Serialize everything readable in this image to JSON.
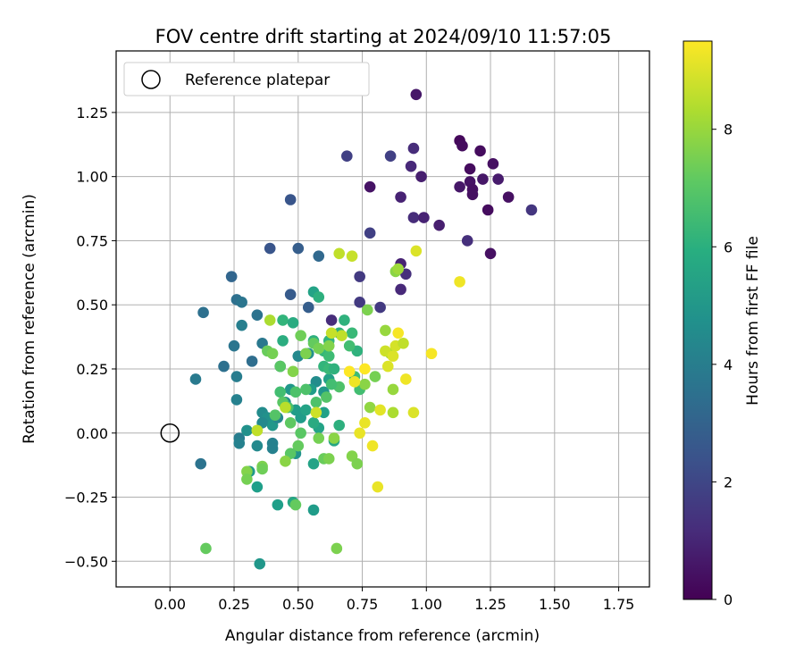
{
  "chart_data": {
    "type": "scatter",
    "title": "FOV centre drift starting at 2024/09/10 11:57:05",
    "xlabel": "Angular distance from reference (arcmin)",
    "ylabel": "Rotation from reference (arcmin)",
    "xlim": [
      -0.21,
      1.87
    ],
    "ylim": [
      -0.6,
      1.49
    ],
    "xticks": [
      0.0,
      0.25,
      0.5,
      0.75,
      1.0,
      1.25,
      1.5,
      1.75
    ],
    "xtick_labels": [
      "0.00",
      "0.25",
      "0.50",
      "0.75",
      "1.00",
      "1.25",
      "1.50",
      "1.75"
    ],
    "yticks": [
      -0.5,
      -0.25,
      0.0,
      0.25,
      0.5,
      0.75,
      1.0,
      1.25
    ],
    "ytick_labels": [
      "−0.50",
      "−0.25",
      "0.00",
      "0.25",
      "0.50",
      "0.75",
      "1.00",
      "1.25"
    ],
    "grid": true,
    "legend": {
      "position": "top-left",
      "entries": [
        "Reference platepar"
      ]
    },
    "reference_point": {
      "x": 0.0,
      "y": 0.0,
      "name": "Reference platepar",
      "marker": "hollow-circle"
    },
    "colorbar": {
      "label": "Hours from first FF file",
      "colormap": "viridis",
      "range": [
        0,
        9.5
      ],
      "ticks": [
        0,
        2,
        4,
        6,
        8
      ],
      "tick_labels": [
        "0",
        "2",
        "4",
        "6",
        "8"
      ]
    },
    "points": [
      [
        0.96,
        1.32,
        0.6
      ],
      [
        1.13,
        1.14,
        0.2
      ],
      [
        1.14,
        1.12,
        0.3
      ],
      [
        1.17,
        1.03,
        0.3
      ],
      [
        1.21,
        1.1,
        0.3
      ],
      [
        1.26,
        1.05,
        0.4
      ],
      [
        1.17,
        0.98,
        0.5
      ],
      [
        1.18,
        0.95,
        0.4
      ],
      [
        1.18,
        0.93,
        0.4
      ],
      [
        1.22,
        0.99,
        0.6
      ],
      [
        1.28,
        0.99,
        0.7
      ],
      [
        1.32,
        0.92,
        0.4
      ],
      [
        1.24,
        0.87,
        0.3
      ],
      [
        1.13,
        0.96,
        0.6
      ],
      [
        1.25,
        0.7,
        0.4
      ],
      [
        1.41,
        0.87,
        1.5
      ],
      [
        1.16,
        0.75,
        1.3
      ],
      [
        0.95,
        1.11,
        1.2
      ],
      [
        0.94,
        1.04,
        1.1
      ],
      [
        0.98,
        1.0,
        0.8
      ],
      [
        0.78,
        0.96,
        0.5
      ],
      [
        0.9,
        0.92,
        0.9
      ],
      [
        0.86,
        1.08,
        1.8
      ],
      [
        0.69,
        1.08,
        1.8
      ],
      [
        0.95,
        0.84,
        1.2
      ],
      [
        0.99,
        0.84,
        0.9
      ],
      [
        1.05,
        0.81,
        0.8
      ],
      [
        0.78,
        0.78,
        1.8
      ],
      [
        0.9,
        0.66,
        0.9
      ],
      [
        0.92,
        0.62,
        1.3
      ],
      [
        0.9,
        0.56,
        1.1
      ],
      [
        0.74,
        0.61,
        1.6
      ],
      [
        0.74,
        0.51,
        1.6
      ],
      [
        0.82,
        0.49,
        1.6
      ],
      [
        0.63,
        0.44,
        1.2
      ],
      [
        0.47,
        0.91,
        2.5
      ],
      [
        0.39,
        0.72,
        2.5
      ],
      [
        0.5,
        0.72,
        2.8
      ],
      [
        0.58,
        0.69,
        3.2
      ],
      [
        0.47,
        0.54,
        2.7
      ],
      [
        0.54,
        0.49,
        2.8
      ],
      [
        0.24,
        0.61,
        3.1
      ],
      [
        0.26,
        0.52,
        3.5
      ],
      [
        0.28,
        0.51,
        3.7
      ],
      [
        0.13,
        0.47,
        3.5
      ],
      [
        0.34,
        0.46,
        3.6
      ],
      [
        0.28,
        0.42,
        4.1
      ],
      [
        0.36,
        0.35,
        3.8
      ],
      [
        0.25,
        0.34,
        3.7
      ],
      [
        0.21,
        0.26,
        3.5
      ],
      [
        0.32,
        0.28,
        3.4
      ],
      [
        0.43,
        0.26,
        3.3
      ],
      [
        0.1,
        0.21,
        3.9
      ],
      [
        0.26,
        0.22,
        4.0
      ],
      [
        0.26,
        0.13,
        4.2
      ],
      [
        0.12,
        -0.12,
        3.6
      ],
      [
        0.27,
        -0.02,
        4.0
      ],
      [
        0.27,
        -0.04,
        4.2
      ],
      [
        0.3,
        0.01,
        4.8
      ],
      [
        0.34,
        -0.05,
        4.5
      ],
      [
        0.4,
        -0.04,
        4.2
      ],
      [
        0.4,
        -0.06,
        4.2
      ],
      [
        0.36,
        0.08,
        4.6
      ],
      [
        0.38,
        0.06,
        4.8
      ],
      [
        0.4,
        0.03,
        5.0
      ],
      [
        0.42,
        0.06,
        4.4
      ],
      [
        0.36,
        0.04,
        4.5
      ],
      [
        0.45,
        0.12,
        4.7
      ],
      [
        0.47,
        0.17,
        5.0
      ],
      [
        0.49,
        0.09,
        5.2
      ],
      [
        0.51,
        0.06,
        5.2
      ],
      [
        0.53,
        0.09,
        5.5
      ],
      [
        0.5,
        0.3,
        4.5
      ],
      [
        0.54,
        0.31,
        4.8
      ],
      [
        0.57,
        0.2,
        4.6
      ],
      [
        0.55,
        0.17,
        5.2
      ],
      [
        0.6,
        0.16,
        5.0
      ],
      [
        0.62,
        0.21,
        5.4
      ],
      [
        0.6,
        0.08,
        5.4
      ],
      [
        0.58,
        0.02,
        5.5
      ],
      [
        0.56,
        0.04,
        5.8
      ],
      [
        0.64,
        -0.03,
        5.6
      ],
      [
        0.66,
        0.03,
        6.0
      ],
      [
        0.49,
        -0.08,
        4.9
      ],
      [
        0.56,
        -0.12,
        5.5
      ],
      [
        0.56,
        -0.3,
        5.2
      ],
      [
        0.42,
        -0.28,
        5.3
      ],
      [
        0.48,
        -0.27,
        5.6
      ],
      [
        0.35,
        -0.51,
        5.0
      ],
      [
        0.31,
        -0.15,
        5.1
      ],
      [
        0.34,
        -0.21,
        5.3
      ],
      [
        0.56,
        0.55,
        5.5
      ],
      [
        0.58,
        0.53,
        6.0
      ],
      [
        0.44,
        0.44,
        6.2
      ],
      [
        0.48,
        0.43,
        5.8
      ],
      [
        0.44,
        0.36,
        5.9
      ],
      [
        0.56,
        0.36,
        6.0
      ],
      [
        0.6,
        0.32,
        6.3
      ],
      [
        0.62,
        0.36,
        6.2
      ],
      [
        0.62,
        0.3,
        6.5
      ],
      [
        0.6,
        0.26,
        6.2
      ],
      [
        0.62,
        0.25,
        6.4
      ],
      [
        0.64,
        0.25,
        6.1
      ],
      [
        0.66,
        0.39,
        6.0
      ],
      [
        0.68,
        0.44,
        6.1
      ],
      [
        0.71,
        0.39,
        6.4
      ],
      [
        0.73,
        0.32,
        6.1
      ],
      [
        0.7,
        0.34,
        6.6
      ],
      [
        0.72,
        0.22,
        6.5
      ],
      [
        0.74,
        0.17,
        6.6
      ],
      [
        0.66,
        0.18,
        6.8
      ],
      [
        0.63,
        0.19,
        6.6
      ],
      [
        0.61,
        0.14,
        6.9
      ],
      [
        0.57,
        0.12,
        6.8
      ],
      [
        0.53,
        0.17,
        6.8
      ],
      [
        0.49,
        0.16,
        6.8
      ],
      [
        0.43,
        0.16,
        6.6
      ],
      [
        0.46,
        0.1,
        6.7
      ],
      [
        0.41,
        0.07,
        6.9
      ],
      [
        0.44,
        0.12,
        7.0
      ],
      [
        0.47,
        0.04,
        7.1
      ],
      [
        0.5,
        -0.05,
        7.2
      ],
      [
        0.47,
        -0.08,
        7.0
      ],
      [
        0.51,
        0.0,
        7.0
      ],
      [
        0.38,
        0.32,
        7.3
      ],
      [
        0.4,
        0.31,
        7.5
      ],
      [
        0.43,
        0.26,
        7.0
      ],
      [
        0.48,
        0.24,
        7.7
      ],
      [
        0.51,
        0.38,
        7.4
      ],
      [
        0.53,
        0.31,
        7.6
      ],
      [
        0.56,
        0.35,
        7.2
      ],
      [
        0.58,
        0.33,
        7.5
      ],
      [
        0.62,
        0.34,
        7.7
      ],
      [
        0.34,
        0.01,
        7.8
      ],
      [
        0.3,
        -0.15,
        7.7
      ],
      [
        0.3,
        -0.18,
        7.5
      ],
      [
        0.36,
        -0.13,
        7.6
      ],
      [
        0.36,
        -0.14,
        7.4
      ],
      [
        0.45,
        -0.11,
        7.8
      ],
      [
        0.49,
        -0.28,
        7.2
      ],
      [
        0.6,
        -0.1,
        7.3
      ],
      [
        0.62,
        -0.1,
        7.6
      ],
      [
        0.64,
        -0.02,
        7.8
      ],
      [
        0.58,
        -0.02,
        7.5
      ],
      [
        0.14,
        -0.45,
        7.2
      ],
      [
        0.65,
        -0.45,
        7.6
      ],
      [
        0.71,
        -0.09,
        7.7
      ],
      [
        0.73,
        -0.12,
        7.6
      ],
      [
        0.76,
        0.19,
        7.8
      ],
      [
        0.78,
        0.1,
        7.9
      ],
      [
        0.8,
        0.22,
        7.5
      ],
      [
        0.84,
        0.4,
        8.0
      ],
      [
        0.86,
        0.31,
        8.2
      ],
      [
        0.87,
        0.17,
        8.0
      ],
      [
        0.87,
        0.08,
        8.3
      ],
      [
        0.77,
        0.48,
        7.6
      ],
      [
        0.88,
        0.63,
        7.8
      ],
      [
        0.89,
        0.64,
        8.1
      ],
      [
        0.39,
        0.44,
        8.3
      ],
      [
        0.66,
        0.7,
        8.6
      ],
      [
        0.71,
        0.69,
        8.7
      ],
      [
        0.96,
        0.71,
        9.0
      ],
      [
        1.13,
        0.59,
        9.3
      ],
      [
        0.63,
        0.39,
        8.7
      ],
      [
        0.67,
        0.38,
        8.6
      ],
      [
        0.84,
        0.32,
        8.8
      ],
      [
        0.87,
        0.3,
        9.0
      ],
      [
        0.88,
        0.34,
        8.9
      ],
      [
        0.89,
        0.39,
        9.4
      ],
      [
        0.91,
        0.35,
        8.6
      ],
      [
        0.85,
        0.26,
        9.0
      ],
      [
        0.76,
        0.25,
        9.5
      ],
      [
        0.7,
        0.24,
        9.5
      ],
      [
        0.72,
        0.2,
        9.3
      ],
      [
        0.92,
        0.21,
        9.3
      ],
      [
        1.02,
        0.31,
        9.4
      ],
      [
        0.82,
        0.09,
        9.1
      ],
      [
        0.76,
        0.04,
        9.2
      ],
      [
        0.74,
        0.0,
        9.2
      ],
      [
        0.79,
        -0.05,
        9.3
      ],
      [
        0.81,
        -0.21,
        9.2
      ],
      [
        0.95,
        0.08,
        9.0
      ],
      [
        0.57,
        0.08,
        8.8
      ],
      [
        0.45,
        0.1,
        8.5
      ],
      [
        0.34,
        0.01,
        8.6
      ]
    ]
  }
}
